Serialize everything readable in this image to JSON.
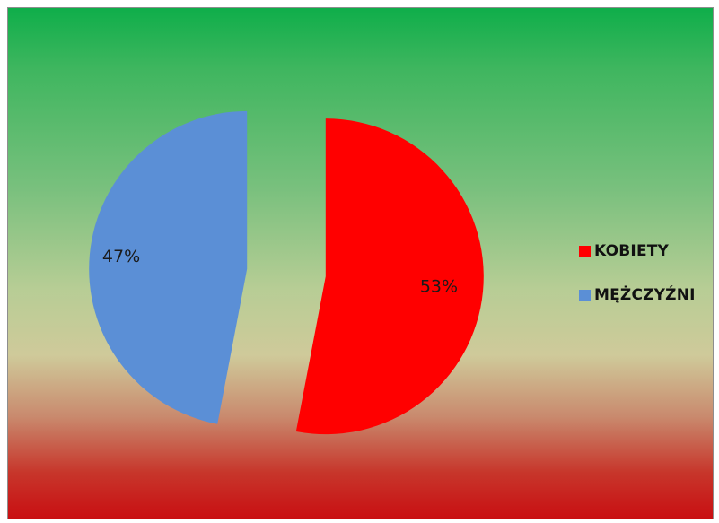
{
  "chart_data": {
    "type": "pie",
    "title": "",
    "slices": [
      {
        "label": "KOBIETY",
        "value": 53,
        "display": "53%",
        "color": "#ff0000"
      },
      {
        "label": "MĘŻCZYŹNI",
        "value": 47,
        "display": "47%",
        "color": "#5b8fd6"
      }
    ],
    "exploded": true,
    "legend_position": "right"
  }
}
